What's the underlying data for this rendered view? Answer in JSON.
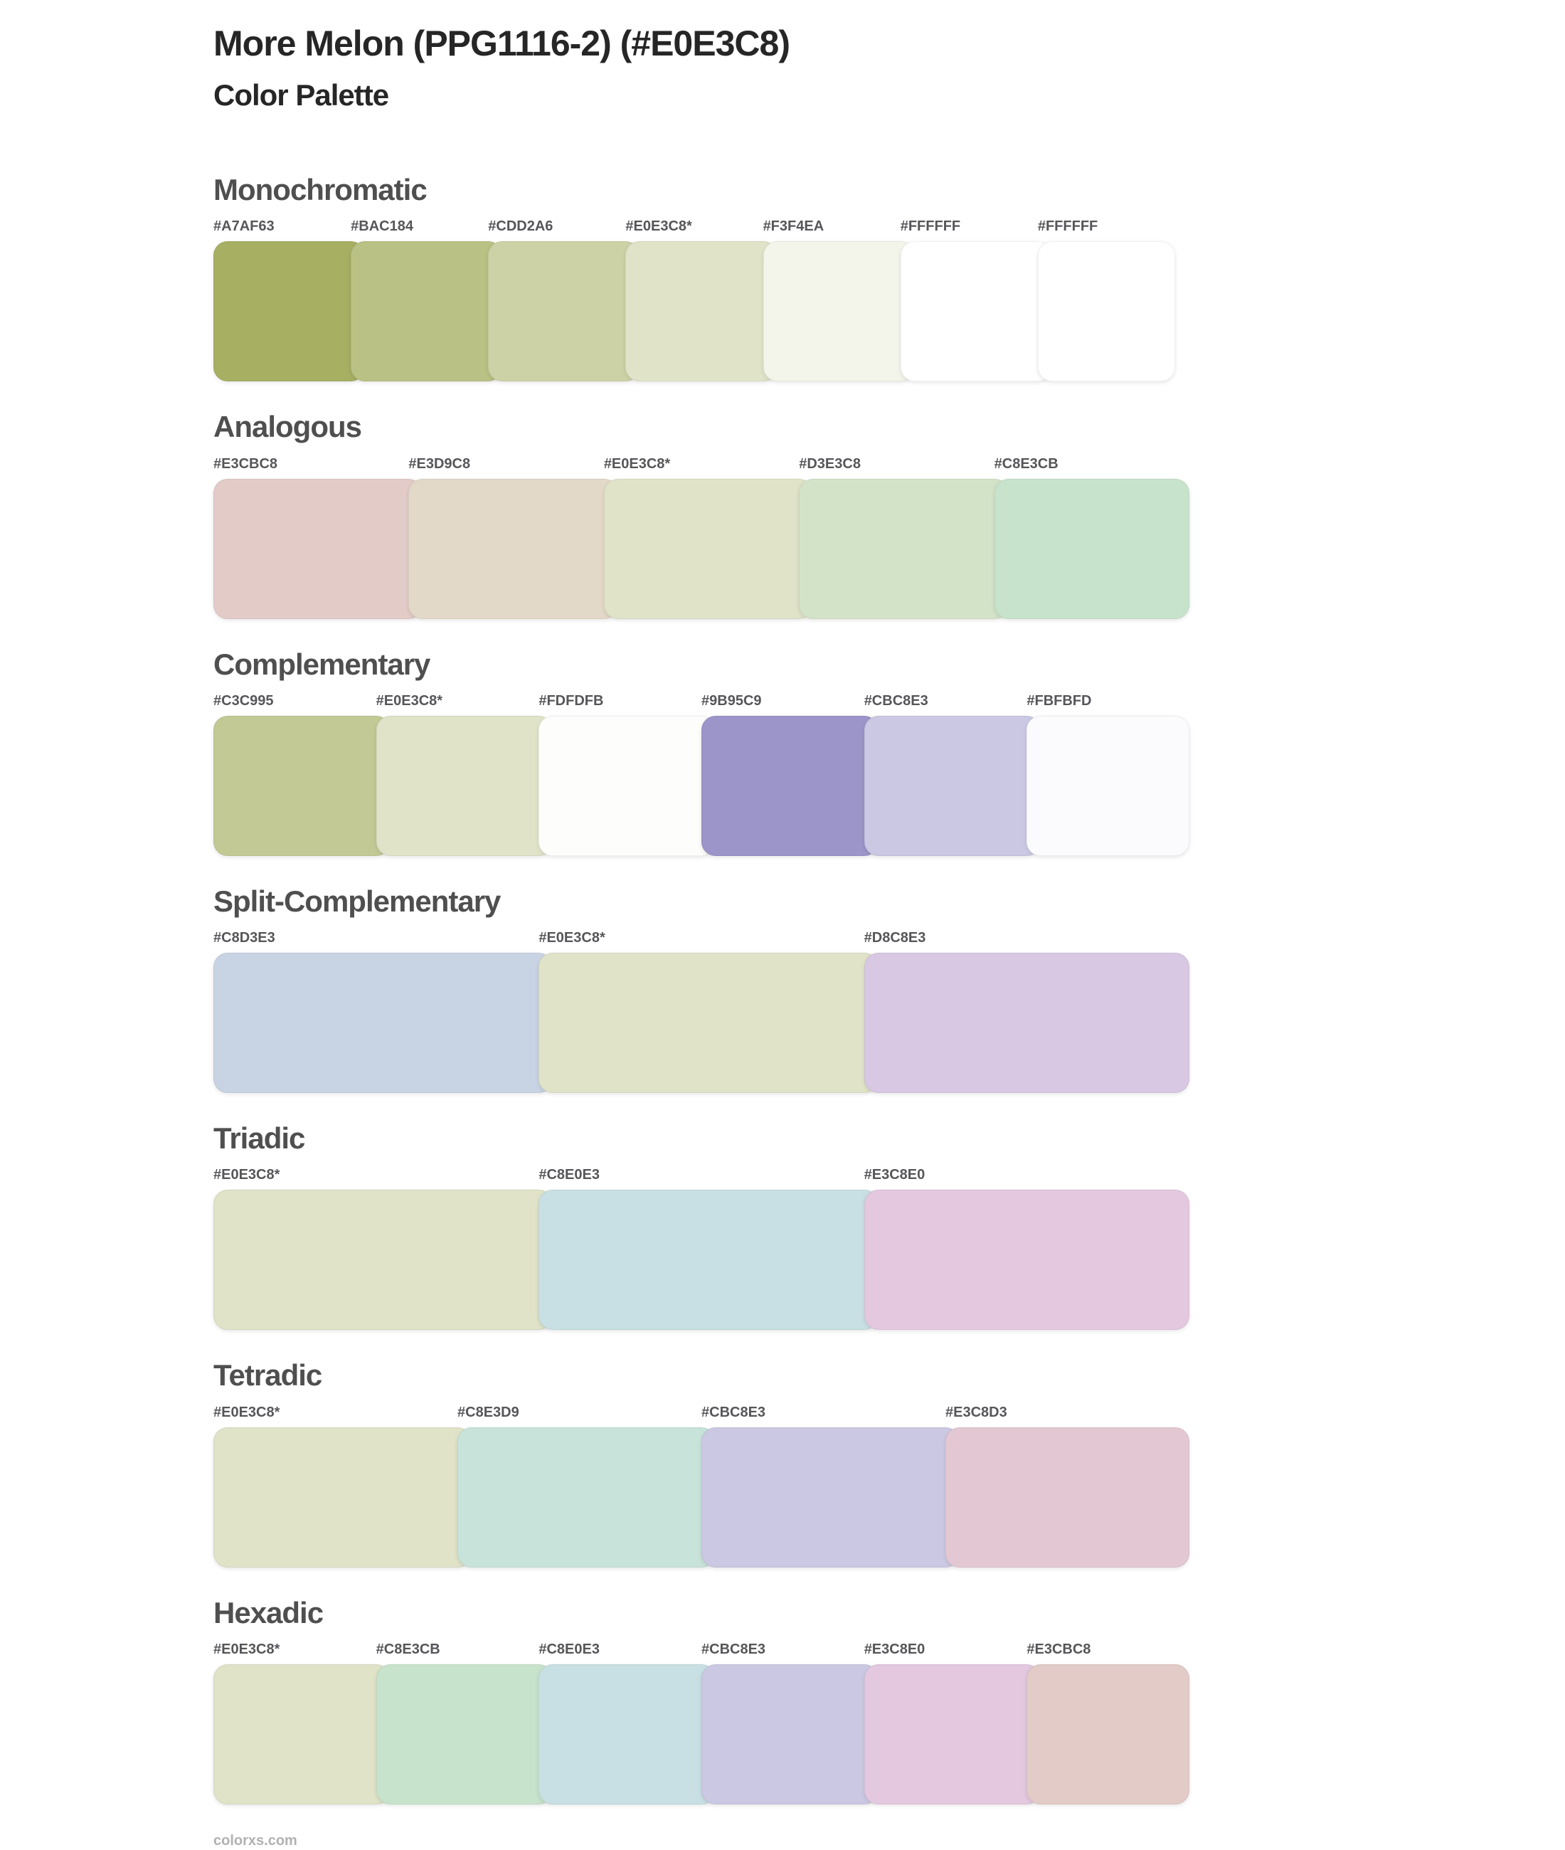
{
  "header": {
    "title": "More Melon (PPG1116-2) (#E0E3C8)",
    "subtitle": "Color Palette"
  },
  "base_color": "#E0E3C8",
  "sections": [
    {
      "label": "Monochromatic",
      "swatches": [
        {
          "label": "#A7AF63",
          "color": "#A7AF63"
        },
        {
          "label": "#BAC184",
          "color": "#BAC184"
        },
        {
          "label": "#CDD2A6",
          "color": "#CDD2A6"
        },
        {
          "label": "#E0E3C8*",
          "color": "#E0E3C8"
        },
        {
          "label": "#F3F4EA",
          "color": "#F3F4EA"
        },
        {
          "label": "#FFFFFF",
          "color": "#FFFFFF"
        },
        {
          "label": "#FFFFFF",
          "color": "#FFFFFF"
        }
      ]
    },
    {
      "label": "Analogous",
      "swatches": [
        {
          "label": "#E3CBC8",
          "color": "#E3CBC8"
        },
        {
          "label": "#E3D9C8",
          "color": "#E3D9C8"
        },
        {
          "label": "#E0E3C8*",
          "color": "#E0E3C8"
        },
        {
          "label": "#D3E3C8",
          "color": "#D3E3C8"
        },
        {
          "label": "#C8E3CB",
          "color": "#C8E3CB"
        }
      ]
    },
    {
      "label": "Complementary",
      "swatches": [
        {
          "label": "#C3C995",
          "color": "#C3C995"
        },
        {
          "label": "#E0E3C8*",
          "color": "#E0E3C8"
        },
        {
          "label": "#FDFDFB",
          "color": "#FDFDFB"
        },
        {
          "label": "#9B95C9",
          "color": "#9B95C9"
        },
        {
          "label": "#CBC8E3",
          "color": "#CBC8E3"
        },
        {
          "label": "#FBFBFD",
          "color": "#FBFBFD"
        }
      ]
    },
    {
      "label": "Split-Complementary",
      "swatches": [
        {
          "label": "#C8D3E3",
          "color": "#C8D3E3"
        },
        {
          "label": "#E0E3C8*",
          "color": "#E0E3C8"
        },
        {
          "label": "#D8C8E3",
          "color": "#D8C8E3"
        }
      ]
    },
    {
      "label": "Triadic",
      "swatches": [
        {
          "label": "#E0E3C8*",
          "color": "#E0E3C8"
        },
        {
          "label": "#C8E0E3",
          "color": "#C8E0E3"
        },
        {
          "label": "#E3C8E0",
          "color": "#E3C8E0"
        }
      ]
    },
    {
      "label": "Tetradic",
      "swatches": [
        {
          "label": "#E0E3C8*",
          "color": "#E0E3C8"
        },
        {
          "label": "#C8E3D9",
          "color": "#C8E3D9"
        },
        {
          "label": "#CBC8E3",
          "color": "#CBC8E3"
        },
        {
          "label": "#E3C8D3",
          "color": "#E3C8D3"
        }
      ]
    },
    {
      "label": "Hexadic",
      "swatches": [
        {
          "label": "#E0E3C8*",
          "color": "#E0E3C8"
        },
        {
          "label": "#C8E3CB",
          "color": "#C8E3CB"
        },
        {
          "label": "#C8E0E3",
          "color": "#C8E0E3"
        },
        {
          "label": "#CBC8E3",
          "color": "#CBC8E3"
        },
        {
          "label": "#E3C8E0",
          "color": "#E3C8E0"
        },
        {
          "label": "#E3CBC8",
          "color": "#E3CBC8"
        }
      ]
    }
  ],
  "footer": {
    "site": "colorxs.com"
  }
}
